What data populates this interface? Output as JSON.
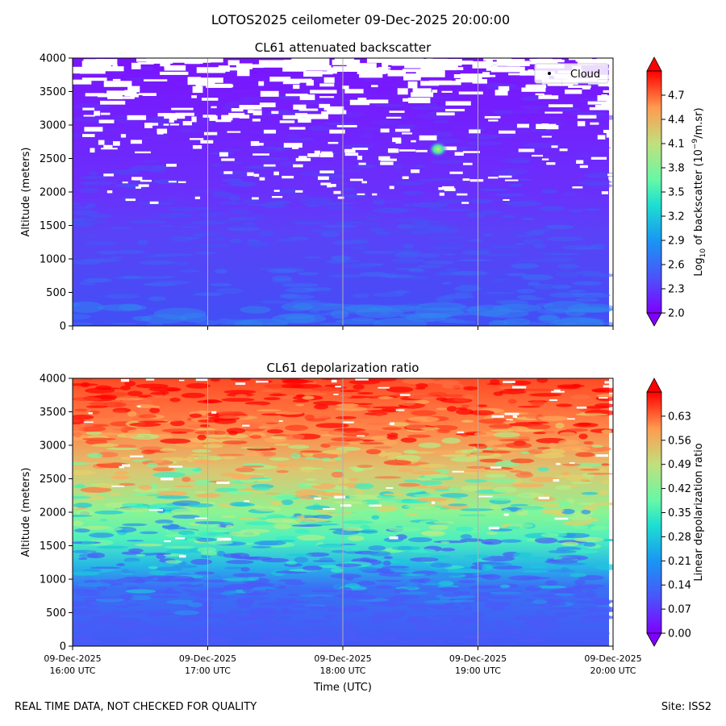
{
  "figure": {
    "suptitle": "LOTOS2025 ceilometer 09-Dec-2025 20:00:00",
    "footer_left": "REAL TIME DATA, NOT CHECKED FOR QUALITY",
    "footer_right": "Site: ISS2"
  },
  "chart_data": [
    {
      "type": "heatmap",
      "title": "CL61 attenuated backscatter",
      "ylabel": "Altitude (meters)",
      "xlabel": "",
      "ylim": [
        0,
        4000
      ],
      "yticks": [
        "0",
        "500",
        "1000",
        "1500",
        "2000",
        "2500",
        "3000",
        "3500",
        "4000"
      ],
      "x_range": [
        "09-Dec-2025 16:00 UTC",
        "09-Dec-2025 20:00 UTC"
      ],
      "grid": "vertical",
      "legend": {
        "position": "upper-right",
        "entries": [
          "Cloud"
        ]
      },
      "annotation": "small cloud patch near 18:45 UTC, ~2600 m",
      "colorbar": {
        "label_pre": "Log",
        "label_sub": "10",
        "label_mid": " of backscatter (10",
        "label_sup": "−9",
        "label_post": "/m.sr)",
        "range": [
          2.0,
          5.0
        ],
        "ticks": [
          "2.0",
          "2.3",
          "2.6",
          "2.9",
          "3.2",
          "3.5",
          "3.8",
          "4.1",
          "4.4",
          "4.7"
        ],
        "colormap": "rainbow",
        "extend": "both"
      }
    },
    {
      "type": "heatmap",
      "title": "CL61 depolarization ratio",
      "ylabel": "Altitude (meters)",
      "xlabel": "Time (UTC)",
      "ylim": [
        0,
        4000
      ],
      "yticks": [
        "0",
        "500",
        "1000",
        "1500",
        "2000",
        "2500",
        "3000",
        "3500",
        "4000"
      ],
      "xticks": [
        {
          "date": "09-Dec-2025",
          "time": "16:00 UTC"
        },
        {
          "date": "09-Dec-2025",
          "time": "17:00 UTC"
        },
        {
          "date": "09-Dec-2025",
          "time": "18:00 UTC"
        },
        {
          "date": "09-Dec-2025",
          "time": "19:00 UTC"
        },
        {
          "date": "09-Dec-2025",
          "time": "20:00 UTC"
        }
      ],
      "grid": "vertical",
      "colorbar": {
        "label": "Linear depolarization ratio",
        "range": [
          0.0,
          0.7
        ],
        "ticks": [
          "0.00",
          "0.07",
          "0.14",
          "0.21",
          "0.28",
          "0.35",
          "0.42",
          "0.49",
          "0.56",
          "0.63"
        ],
        "colormap": "rainbow",
        "extend": "both"
      }
    }
  ]
}
